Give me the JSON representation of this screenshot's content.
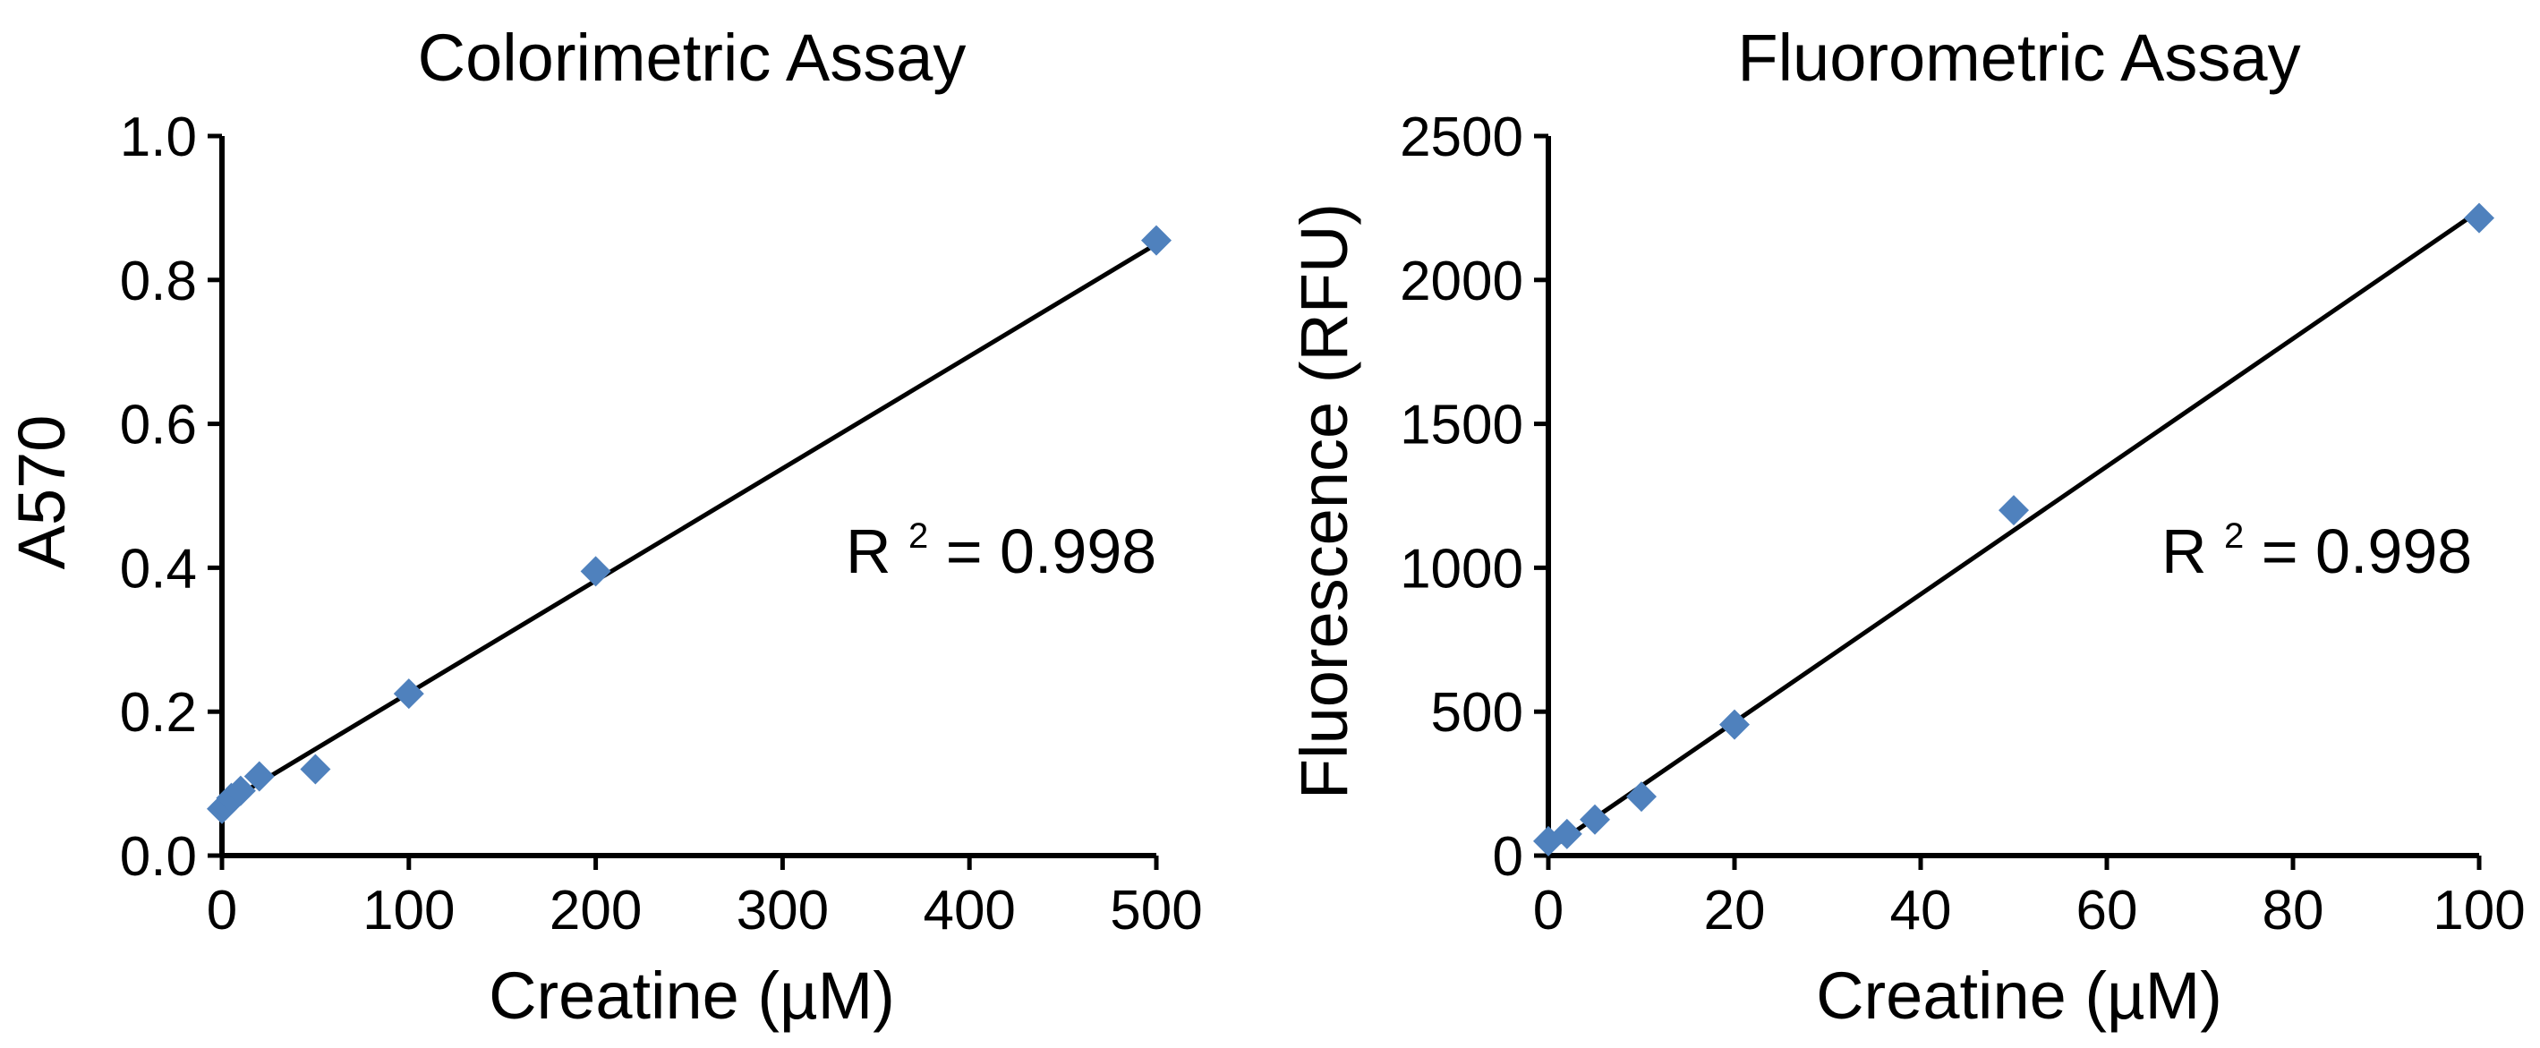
{
  "colors": {
    "marker": "#4f81bd",
    "axis": "#000000",
    "fit": "#000000"
  },
  "chart_data": [
    {
      "type": "scatter",
      "title": "Colorimetric Assay",
      "xlabel": "Creatine (µM)",
      "ylabel": "A570",
      "xlim": [
        0,
        500
      ],
      "ylim": [
        0,
        1.0
      ],
      "xticks": [
        "0",
        "100",
        "200",
        "300",
        "400",
        "500"
      ],
      "yticks": [
        "0.0",
        "0.2",
        "0.4",
        "0.6",
        "0.8",
        "1.0"
      ],
      "grid": false,
      "legend": "none",
      "marker": "diamond",
      "series": [
        {
          "x": [
            0,
            2,
            5,
            10,
            20,
            50,
            100,
            200,
            500
          ],
          "y": [
            0.065,
            0.07,
            0.08,
            0.09,
            0.11,
            0.12,
            0.225,
            0.395,
            0.855
          ]
        }
      ],
      "trendline": {
        "type": "linear",
        "x": [
          0,
          500
        ],
        "y": [
          0.07,
          0.85
        ]
      },
      "annotation": {
        "base": "R",
        "sup": "2",
        "rest": " = 0.998"
      }
    },
    {
      "type": "scatter",
      "title": "Fluorometric Assay",
      "xlabel": "Creatine (µM)",
      "ylabel": "Fluorescence (RFU)",
      "xlim": [
        0,
        100
      ],
      "ylim": [
        0,
        2500
      ],
      "xticks": [
        "0",
        "20",
        "40",
        "60",
        "80",
        "100"
      ],
      "yticks": [
        "0",
        "500",
        "1000",
        "1500",
        "2000",
        "2500"
      ],
      "grid": false,
      "legend": "none",
      "marker": "diamond",
      "series": [
        {
          "x": [
            0,
            2,
            5,
            10,
            20,
            50,
            100
          ],
          "y": [
            50,
            75,
            125,
            205,
            455,
            1200,
            2215
          ]
        }
      ],
      "trendline": {
        "type": "linear",
        "x": [
          0,
          100
        ],
        "y": [
          20,
          2240
        ]
      },
      "annotation": {
        "base": "R",
        "sup": "2",
        "rest": " = 0.998"
      }
    }
  ]
}
